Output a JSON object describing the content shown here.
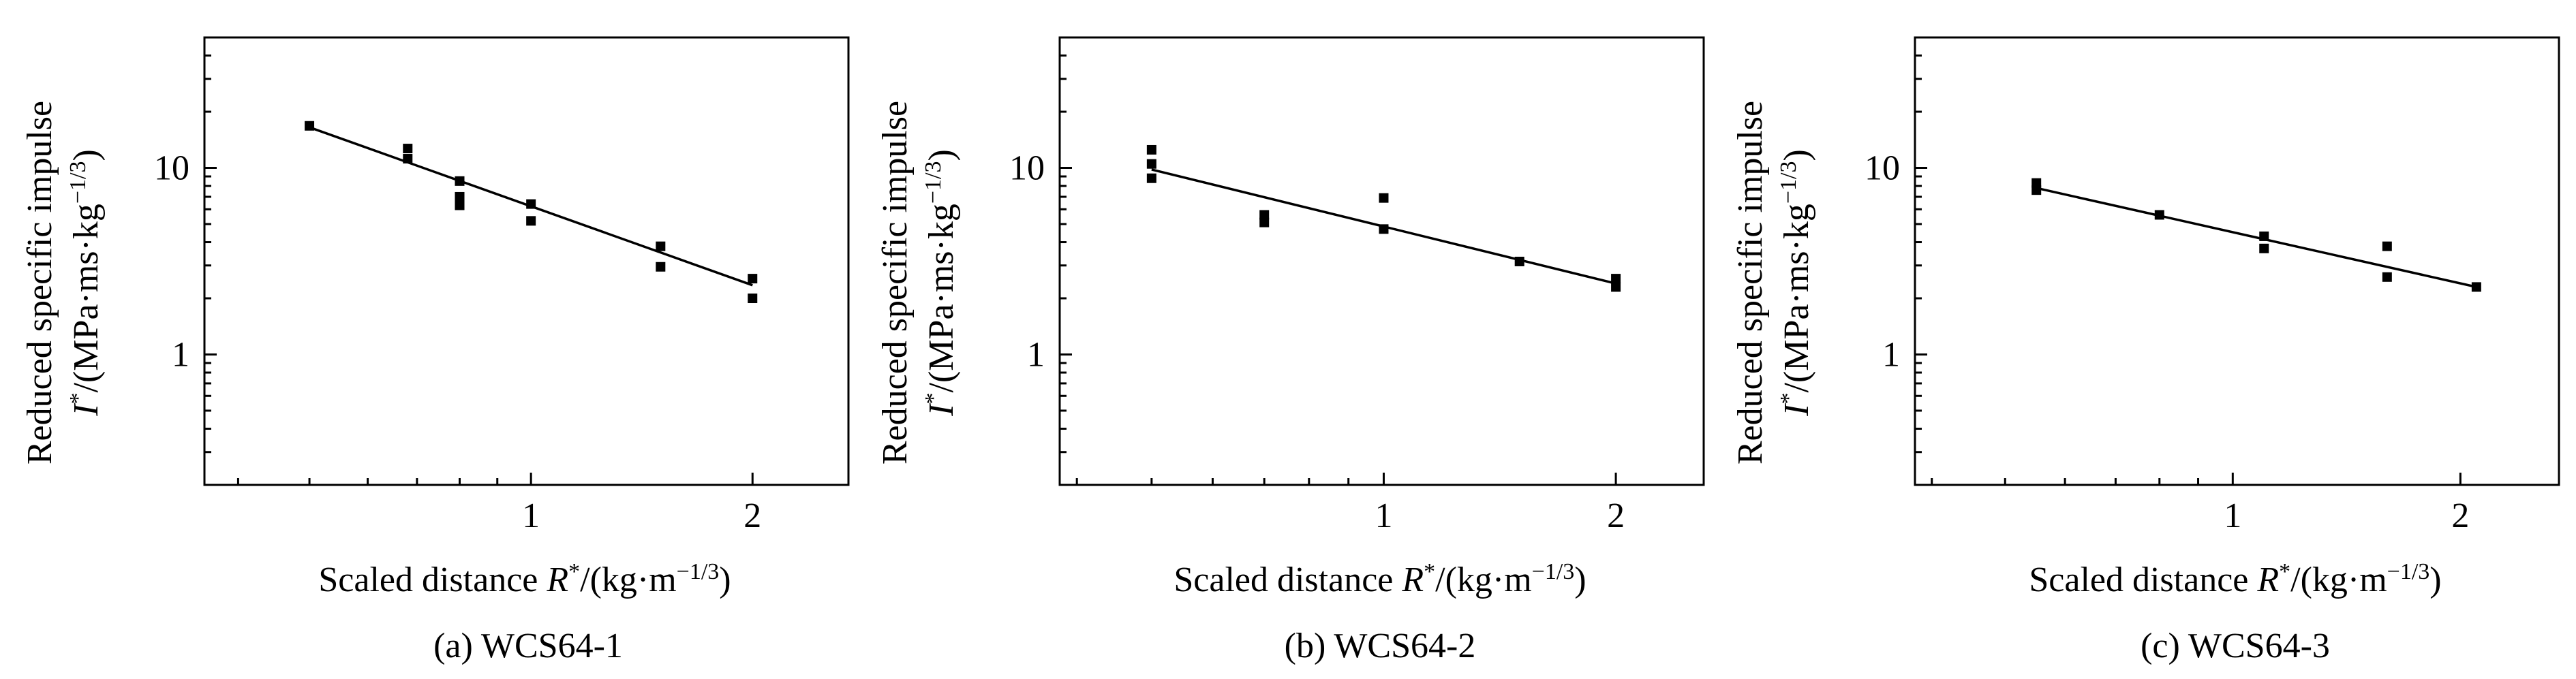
{
  "figure": {
    "panels": [
      {
        "caption": "(a) WCS64-1",
        "ylabel_line1": "Reduced specific impulse",
        "ylabel_line2_prefix": "I",
        "ylabel_line2_sup": "*",
        "ylabel_line2_rest": "/(MPa·ms·kg",
        "ylabel_line2_exp": "−1/3",
        "ylabel_line2_end": ")",
        "xlabel_prefix": "Scaled distance ",
        "xlabel_var": "R",
        "xlabel_sup": "*",
        "xlabel_rest": "/(kg·m",
        "xlabel_exp": "−1/3",
        "xlabel_end": ")"
      },
      {
        "caption": "(b) WCS64-2",
        "ylabel_line1": "Reduced specific impulse",
        "ylabel_line2_prefix": "I",
        "ylabel_line2_sup": "*",
        "ylabel_line2_rest": "/(MPa·ms·kg",
        "ylabel_line2_exp": "−1/3",
        "ylabel_line2_end": ")",
        "xlabel_prefix": "Scaled distance ",
        "xlabel_var": "R",
        "xlabel_sup": "*",
        "xlabel_rest": "/(kg·m",
        "xlabel_exp": "−1/3",
        "xlabel_end": ")"
      },
      {
        "caption": "(c) WCS64-3",
        "ylabel_line1": "Reduced specific impulse",
        "ylabel_line2_prefix": "I",
        "ylabel_line2_sup": "*",
        "ylabel_line2_rest": "/(MPa·ms·kg",
        "ylabel_line2_exp": "−1/3",
        "ylabel_line2_end": ")",
        "xlabel_prefix": "Scaled distance ",
        "xlabel_var": "R",
        "xlabel_sup": "*",
        "xlabel_rest": "/(kg·m",
        "xlabel_exp": "−1/3",
        "xlabel_end": ")"
      }
    ]
  },
  "chart_data": [
    {
      "type": "scatter",
      "caption": "(a) WCS64-1",
      "xscale": "log",
      "yscale": "log",
      "xlim": [
        0.36,
        2.7
      ],
      "ylim": [
        0.2,
        50
      ],
      "xticks": [
        1,
        2
      ],
      "xtick_labels": [
        "1",
        "2"
      ],
      "yticks": [
        1,
        10
      ],
      "ytick_labels": [
        "1",
        "10"
      ],
      "grid": false,
      "series": [
        {
          "kind": "points",
          "points": [
            [
              0.5,
              16.8
            ],
            [
              0.68,
              12.7
            ],
            [
              0.68,
              11.2
            ],
            [
              0.8,
              8.5
            ],
            [
              0.8,
              7.0
            ],
            [
              0.8,
              6.3
            ],
            [
              1.0,
              6.4
            ],
            [
              1.0,
              5.2
            ],
            [
              1.5,
              3.8
            ],
            [
              1.5,
              2.95
            ],
            [
              2.0,
              2.55
            ],
            [
              2.0,
              2.0
            ]
          ]
        },
        {
          "kind": "fit-line",
          "points": [
            [
              0.5,
              16.5
            ],
            [
              2.0,
              2.35
            ]
          ]
        }
      ]
    },
    {
      "type": "scatter",
      "caption": "(b) WCS64-2",
      "xscale": "log",
      "yscale": "log",
      "xlim": [
        0.38,
        2.6
      ],
      "ylim": [
        0.2,
        50
      ],
      "xticks": [
        1,
        2
      ],
      "xtick_labels": [
        "1",
        "2"
      ],
      "yticks": [
        1,
        10
      ],
      "ytick_labels": [
        "1",
        "10"
      ],
      "grid": false,
      "series": [
        {
          "kind": "points",
          "points": [
            [
              0.5,
              12.5
            ],
            [
              0.5,
              10.5
            ],
            [
              0.5,
              8.8
            ],
            [
              0.7,
              5.6
            ],
            [
              0.7,
              5.1
            ],
            [
              1.0,
              6.9
            ],
            [
              1.0,
              4.7
            ],
            [
              1.5,
              3.15
            ],
            [
              2.0,
              2.55
            ],
            [
              2.0,
              2.3
            ]
          ]
        },
        {
          "kind": "fit-line",
          "points": [
            [
              0.5,
              9.8
            ],
            [
              2.0,
              2.4
            ]
          ]
        }
      ]
    },
    {
      "type": "scatter",
      "caption": "(c) WCS64-3",
      "xscale": "log",
      "yscale": "log",
      "xlim": [
        0.38,
        2.7
      ],
      "ylim": [
        0.2,
        50
      ],
      "xticks": [
        1,
        2
      ],
      "xtick_labels": [
        "1",
        "2"
      ],
      "yticks": [
        1,
        10
      ],
      "ytick_labels": [
        "1",
        "10"
      ],
      "grid": false,
      "series": [
        {
          "kind": "points",
          "points": [
            [
              0.55,
              8.3
            ],
            [
              0.55,
              7.6
            ],
            [
              0.8,
              5.6
            ],
            [
              1.1,
              4.3
            ],
            [
              1.1,
              3.7
            ],
            [
              1.6,
              3.8
            ],
            [
              1.6,
              2.6
            ],
            [
              2.1,
              2.3
            ]
          ]
        },
        {
          "kind": "fit-line",
          "points": [
            [
              0.55,
              7.8
            ],
            [
              2.1,
              2.3
            ]
          ]
        }
      ]
    }
  ]
}
